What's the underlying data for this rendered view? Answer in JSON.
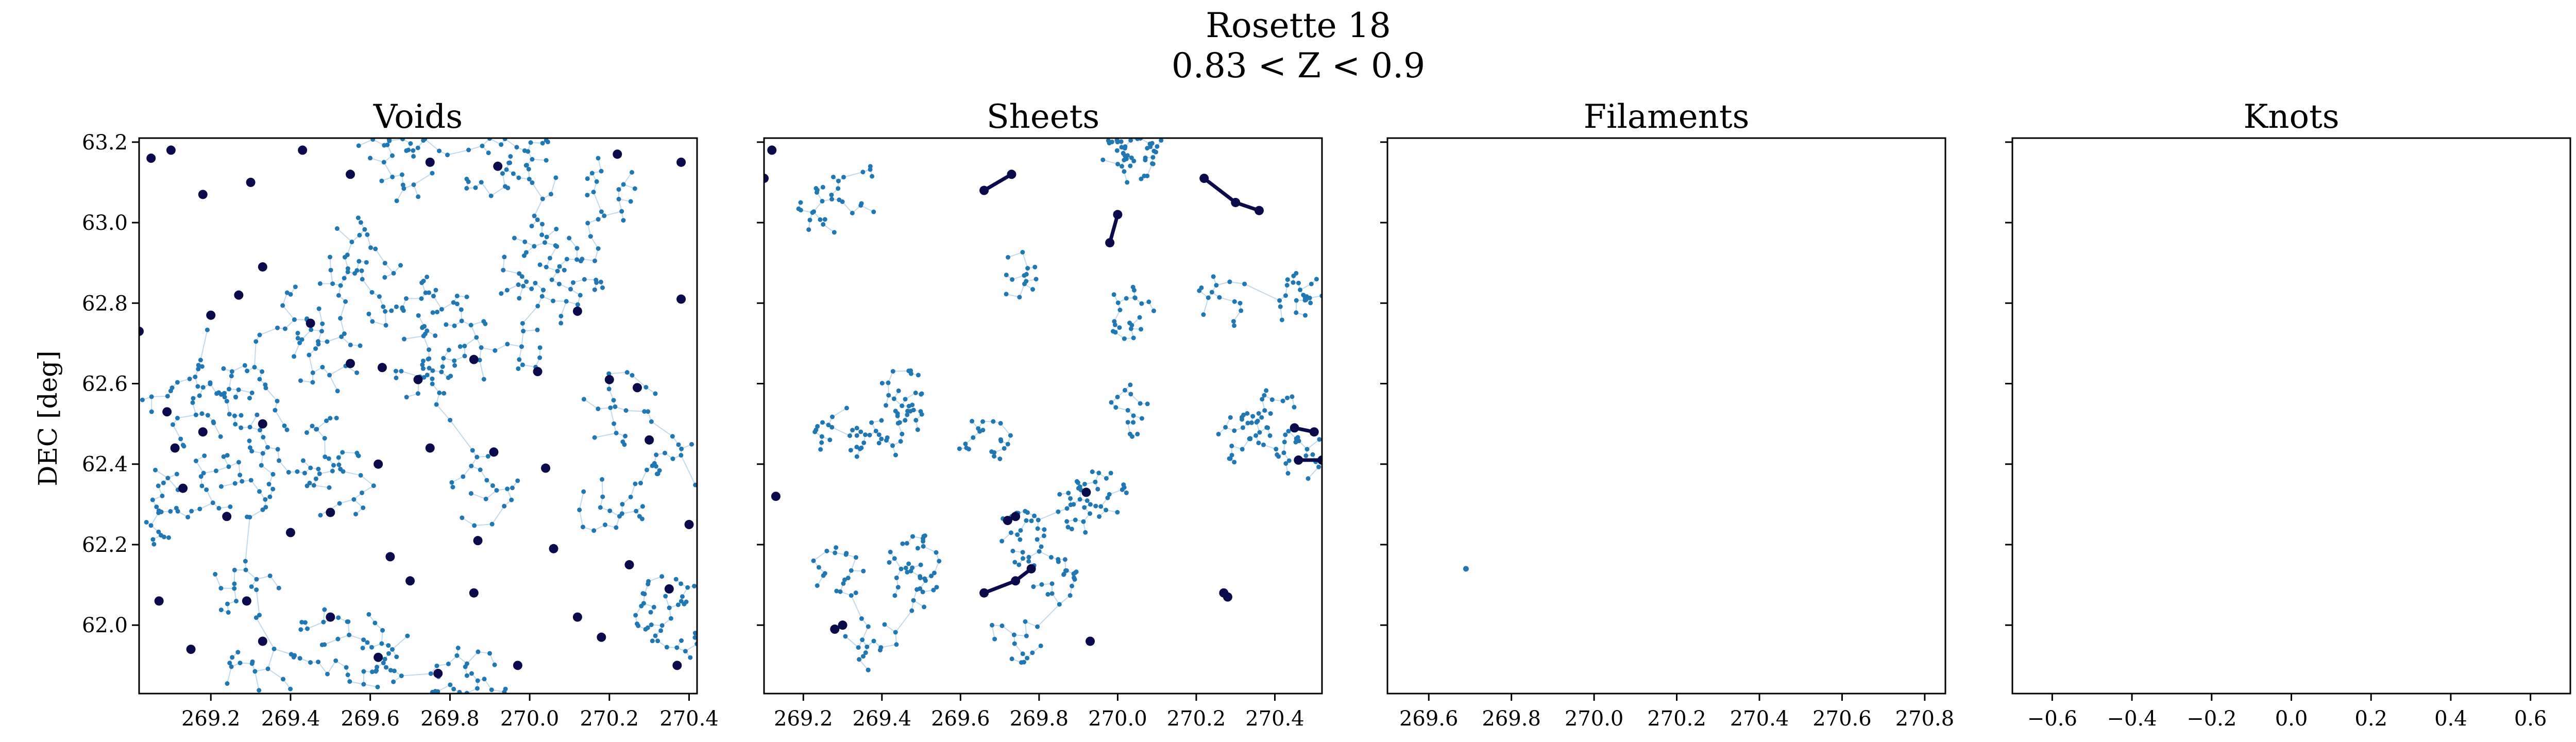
{
  "figure": {
    "title_line1": "Rosette 18",
    "title_line2": "0.83 < Z < 0.9",
    "ylabel": "DEC [deg]"
  },
  "colors": {
    "galaxy": "#1f77b4",
    "highlight": "#0b0b4b",
    "edge": "#1f77b4"
  },
  "chart_data": [
    {
      "type": "scatter",
      "title": "Voids",
      "xlim": [
        269.02,
        270.42
      ],
      "ylim": [
        61.83,
        63.21
      ],
      "xticks": [
        "269.2",
        "269.4",
        "269.6",
        "269.8",
        "270.0",
        "270.2",
        "270.4"
      ],
      "yticks": [
        "62.0",
        "62.2",
        "62.4",
        "62.6",
        "62.8",
        "63.0",
        "63.2"
      ],
      "series": [
        {
          "style": "galaxy-with-mst",
          "n_points": 760
        },
        {
          "style": "isolated-void",
          "points": [
            [
              269.05,
              63.16
            ],
            [
              269.1,
              63.18
            ],
            [
              269.18,
              63.07
            ],
            [
              269.3,
              63.1
            ],
            [
              269.43,
              63.18
            ],
            [
              269.55,
              63.12
            ],
            [
              269.75,
              63.15
            ],
            [
              269.92,
              63.14
            ],
            [
              270.22,
              63.17
            ],
            [
              270.38,
              63.15
            ],
            [
              269.02,
              62.73
            ],
            [
              269.2,
              62.77
            ],
            [
              269.27,
              62.82
            ],
            [
              269.33,
              62.89
            ],
            [
              269.45,
              62.75
            ],
            [
              269.63,
              62.64
            ],
            [
              269.72,
              62.61
            ],
            [
              269.86,
              62.66
            ],
            [
              270.12,
              62.78
            ],
            [
              270.27,
              62.59
            ],
            [
              270.38,
              62.81
            ],
            [
              269.09,
              62.53
            ],
            [
              269.18,
              62.48
            ],
            [
              269.33,
              62.5
            ],
            [
              269.62,
              62.4
            ],
            [
              269.75,
              62.44
            ],
            [
              269.91,
              62.43
            ],
            [
              270.04,
              62.39
            ],
            [
              270.2,
              62.61
            ],
            [
              269.13,
              62.34
            ],
            [
              269.24,
              62.27
            ],
            [
              269.4,
              62.23
            ],
            [
              269.5,
              62.28
            ],
            [
              269.65,
              62.17
            ],
            [
              269.87,
              62.21
            ],
            [
              270.06,
              62.19
            ],
            [
              270.25,
              62.15
            ],
            [
              269.07,
              62.06
            ],
            [
              269.29,
              62.06
            ],
            [
              269.5,
              62.02
            ],
            [
              269.7,
              62.11
            ],
            [
              269.86,
              62.08
            ],
            [
              270.12,
              62.02
            ],
            [
              270.35,
              62.09
            ],
            [
              269.15,
              61.94
            ],
            [
              269.33,
              61.96
            ],
            [
              269.62,
              61.92
            ],
            [
              269.77,
              61.88
            ],
            [
              269.97,
              61.9
            ],
            [
              270.18,
              61.97
            ],
            [
              270.37,
              61.9
            ],
            [
              269.11,
              62.44
            ],
            [
              269.55,
              62.65
            ],
            [
              270.02,
              62.63
            ],
            [
              270.3,
              62.46
            ],
            [
              270.4,
              62.25
            ]
          ]
        }
      ]
    },
    {
      "type": "scatter",
      "title": "Sheets",
      "xlim": [
        269.1,
        270.52
      ],
      "ylim": [
        61.83,
        63.21
      ],
      "xticks": [
        "269.2",
        "269.4",
        "269.6",
        "269.8",
        "270.0",
        "270.2",
        "270.4"
      ],
      "series": [
        {
          "style": "galaxy-with-mst",
          "n_points": 520
        },
        {
          "style": "sheet-cluster",
          "points": [
            [
              269.12,
              63.18
            ],
            [
              269.1,
              63.11
            ],
            [
              269.66,
              63.08
            ],
            [
              269.73,
              63.12
            ],
            [
              270.0,
              63.02
            ],
            [
              269.98,
              62.95
            ],
            [
              270.22,
              63.11
            ],
            [
              270.3,
              63.05
            ],
            [
              270.36,
              63.03
            ],
            [
              270.45,
              62.49
            ],
            [
              270.5,
              62.48
            ],
            [
              270.46,
              62.41
            ],
            [
              270.52,
              62.41
            ],
            [
              269.92,
              62.33
            ],
            [
              269.13,
              62.32
            ],
            [
              269.74,
              62.27
            ],
            [
              269.72,
              62.26
            ],
            [
              269.66,
              62.08
            ],
            [
              269.74,
              62.11
            ],
            [
              269.78,
              62.14
            ],
            [
              270.28,
              62.07
            ],
            [
              270.27,
              62.08
            ],
            [
              269.3,
              62.0
            ],
            [
              269.28,
              61.99
            ],
            [
              269.93,
              61.96
            ]
          ]
        }
      ],
      "segments": [
        [
          [
            269.66,
            63.08
          ],
          [
            269.73,
            63.12
          ]
        ],
        [
          [
            270.0,
            63.02
          ],
          [
            269.98,
            62.95
          ]
        ],
        [
          [
            270.22,
            63.11
          ],
          [
            270.3,
            63.05
          ]
        ],
        [
          [
            270.3,
            63.05
          ],
          [
            270.36,
            63.03
          ]
        ],
        [
          [
            270.45,
            62.49
          ],
          [
            270.5,
            62.48
          ]
        ],
        [
          [
            270.46,
            62.41
          ],
          [
            270.52,
            62.41
          ]
        ],
        [
          [
            269.66,
            62.08
          ],
          [
            269.74,
            62.11
          ]
        ],
        [
          [
            269.74,
            62.11
          ],
          [
            269.78,
            62.14
          ]
        ],
        [
          [
            269.3,
            62.0
          ],
          [
            269.28,
            61.99
          ]
        ],
        [
          [
            269.72,
            62.26
          ],
          [
            269.74,
            62.27
          ]
        ]
      ]
    },
    {
      "type": "scatter",
      "title": "Filaments",
      "xlim": [
        269.5,
        270.85
      ],
      "ylim": [
        61.83,
        63.21
      ],
      "xticks": [
        "269.6",
        "269.8",
        "270.0",
        "270.2",
        "270.4",
        "270.6",
        "270.8"
      ],
      "series": [
        {
          "style": "galaxy",
          "points": [
            [
              269.69,
              62.14
            ]
          ]
        }
      ]
    },
    {
      "type": "scatter",
      "title": "Knots",
      "xlim": [
        -0.7,
        0.7
      ],
      "ylim": [
        61.83,
        63.21
      ],
      "xticks": [
        "−0.6",
        "−0.4",
        "−0.2",
        "0.0",
        "0.2",
        "0.4",
        "0.6"
      ],
      "series": []
    }
  ]
}
